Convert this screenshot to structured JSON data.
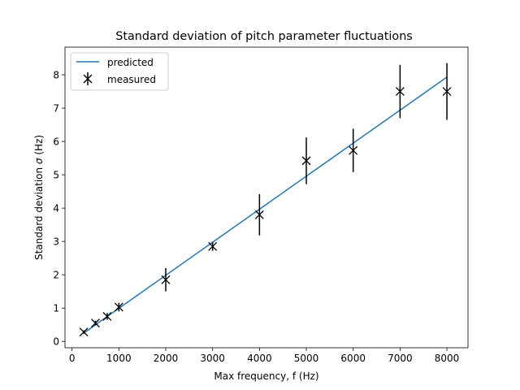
{
  "chart_data": {
    "type": "scatter",
    "title": "Standard deviation of pitch parameter fluctuations",
    "xlabel": "Max frequency, f (Hz)",
    "ylabel_prefix": "Standard deviation ",
    "ylabel_symbol": "σ",
    "ylabel_suffix": " (Hz)",
    "xlim": [
      -150,
      8450
    ],
    "ylim": [
      -0.19,
      8.83
    ],
    "xticks": [
      0,
      1000,
      2000,
      3000,
      4000,
      5000,
      6000,
      7000,
      8000
    ],
    "yticks": [
      0,
      1,
      2,
      3,
      4,
      5,
      6,
      7,
      8
    ],
    "grid": false,
    "legend_position": "upper-left",
    "series": [
      {
        "name": "predicted",
        "kind": "line",
        "color": "#1f77b4",
        "x": [
          250,
          8000
        ],
        "y": [
          0.25,
          7.93
        ]
      },
      {
        "name": "measured",
        "kind": "errorbar",
        "marker": "x",
        "color": "#000000",
        "x": [
          250,
          500,
          750,
          1000,
          2000,
          3000,
          4000,
          5000,
          6000,
          7000,
          8000
        ],
        "y": [
          0.28,
          0.55,
          0.75,
          1.03,
          1.85,
          2.85,
          3.8,
          5.42,
          5.73,
          7.5,
          7.5
        ],
        "yerr_low": [
          0.05,
          0.07,
          0.1,
          0.13,
          0.35,
          0.13,
          0.62,
          0.7,
          0.65,
          0.8,
          0.85
        ],
        "yerr_high": [
          0.05,
          0.07,
          0.1,
          0.13,
          0.35,
          0.13,
          0.62,
          0.7,
          0.65,
          0.8,
          0.85
        ]
      }
    ]
  }
}
